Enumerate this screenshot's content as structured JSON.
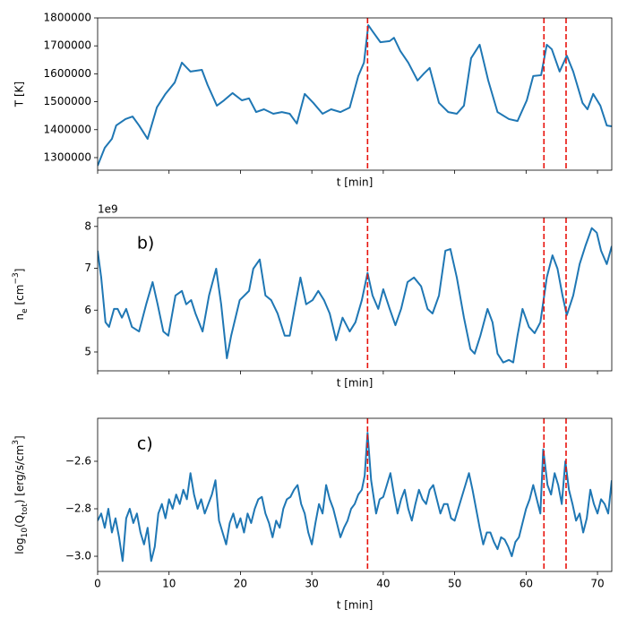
{
  "chart_data": [
    {
      "type": "line",
      "ylabel": "T [K]",
      "xlabel": "t [min]",
      "xlim": [
        0,
        72
      ],
      "xticks": [
        0,
        10,
        20,
        30,
        40,
        50,
        60,
        70
      ],
      "xtick_labels": false,
      "ylim": [
        1255000,
        1800000
      ],
      "yticks": [
        1300000,
        1400000,
        1500000,
        1600000,
        1700000,
        1800000
      ],
      "color": "#1f77b4",
      "vlines": [
        37.8,
        62.5,
        65.6
      ],
      "vline_color": "#e8120c",
      "x": [
        0,
        1.0,
        2.0,
        2.6,
        3.9,
        4.9,
        5.8,
        7.0,
        8.3,
        9.5,
        10.8,
        11.8,
        13.0,
        14.6,
        15.4,
        16.7,
        17.7,
        18.9,
        20.2,
        21.2,
        22.2,
        23.3,
        24.6,
        25.8,
        26.9,
        27.9,
        29.0,
        30.2,
        31.5,
        32.7,
        34.0,
        35.3,
        36.5,
        37.3,
        37.9,
        38.5,
        39.6,
        40.9,
        41.5,
        42.4,
        43.5,
        44.8,
        45.7,
        46.5,
        47.8,
        49.1,
        50.3,
        51.3,
        52.3,
        53.5,
        54.7,
        56.0,
        57.6,
        58.8,
        60.1,
        61.0,
        62.1,
        62.9,
        63.6,
        64.7,
        65.7,
        66.6,
        67.9,
        68.6,
        69.4,
        70.4,
        71.3,
        72.0
      ],
      "values": [
        1271000,
        1335000,
        1367000,
        1415000,
        1438000,
        1447000,
        1415000,
        1367000,
        1480000,
        1528000,
        1569000,
        1640000,
        1608000,
        1614000,
        1560000,
        1486000,
        1505000,
        1531000,
        1505000,
        1512000,
        1463000,
        1473000,
        1457000,
        1463000,
        1457000,
        1422000,
        1528000,
        1496000,
        1457000,
        1473000,
        1463000,
        1479000,
        1592000,
        1640000,
        1774000,
        1752000,
        1713000,
        1717000,
        1729000,
        1681000,
        1640000,
        1576000,
        1601000,
        1621000,
        1496000,
        1463000,
        1457000,
        1486000,
        1656000,
        1704000,
        1576000,
        1463000,
        1438000,
        1431000,
        1505000,
        1592000,
        1595000,
        1704000,
        1688000,
        1608000,
        1665000,
        1608000,
        1496000,
        1473000,
        1528000,
        1486000,
        1415000,
        1412000
      ]
    },
    {
      "type": "line",
      "ylabel": [
        {
          "text": "n"
        },
        {
          "text": "e",
          "shift": "sub"
        },
        {
          "text": " [cm"
        },
        {
          "text": "−3",
          "shift": "super"
        },
        {
          "text": "]"
        }
      ],
      "xlabel": "t [min]",
      "offset_text": "1e9",
      "annotation": "b)",
      "xlim": [
        0,
        72
      ],
      "xticks": [
        0,
        10,
        20,
        30,
        40,
        50,
        60,
        70
      ],
      "xtick_labels": false,
      "ylim": [
        4.55,
        8.21
      ],
      "yticks": [
        5,
        6,
        7,
        8
      ],
      "color": "#1f77b4",
      "vlines": [
        37.8,
        62.5,
        65.6
      ],
      "vline_color": "#e8120c",
      "x": [
        0,
        0.5,
        1.1,
        1.6,
        2.3,
        2.8,
        3.4,
        4.0,
        4.8,
        5.8,
        6.8,
        7.7,
        8.4,
        9.2,
        9.9,
        10.9,
        11.8,
        12.4,
        13.1,
        13.7,
        14.7,
        15.6,
        16.6,
        17.3,
        18.1,
        18.7,
        19.9,
        21.2,
        21.8,
        22.7,
        23.5,
        24.3,
        25.2,
        26.2,
        26.9,
        27.7,
        28.4,
        29.2,
        30.1,
        30.9,
        31.7,
        32.5,
        33.4,
        34.3,
        35.3,
        36.1,
        37.0,
        37.8,
        38.5,
        39.3,
        40.0,
        40.9,
        41.7,
        42.5,
        43.4,
        44.3,
        45.3,
        46.2,
        46.9,
        47.8,
        48.7,
        49.4,
        50.3,
        51.3,
        52.2,
        52.8,
        53.6,
        54.6,
        55.3,
        56.0,
        56.8,
        57.6,
        58.2,
        58.8,
        59.5,
        60.4,
        61.2,
        62.0,
        62.9,
        63.7,
        64.4,
        65.1,
        65.7,
        66.6,
        67.5,
        68.3,
        69.2,
        69.9,
        70.5,
        71.3,
        72.0
      ],
      "values": [
        7.42,
        6.78,
        5.71,
        5.6,
        6.03,
        6.03,
        5.82,
        6.03,
        5.6,
        5.49,
        6.14,
        6.67,
        6.14,
        5.49,
        5.39,
        6.35,
        6.46,
        6.14,
        6.24,
        5.92,
        5.49,
        6.35,
        6.99,
        6.14,
        4.85,
        5.39,
        6.24,
        6.46,
        6.99,
        7.21,
        6.35,
        6.24,
        5.92,
        5.39,
        5.39,
        6.14,
        6.78,
        6.14,
        6.24,
        6.46,
        6.24,
        5.92,
        5.28,
        5.82,
        5.49,
        5.71,
        6.24,
        6.89,
        6.35,
        6.03,
        6.5,
        6.03,
        5.64,
        6.03,
        6.67,
        6.78,
        6.57,
        6.03,
        5.92,
        6.35,
        7.42,
        7.46,
        6.78,
        5.82,
        5.07,
        4.96,
        5.39,
        6.03,
        5.71,
        4.96,
        4.75,
        4.81,
        4.75,
        5.39,
        6.03,
        5.6,
        5.45,
        5.71,
        6.78,
        7.31,
        6.99,
        6.35,
        5.88,
        6.35,
        7.1,
        7.53,
        7.96,
        7.85,
        7.42,
        7.1,
        7.53
      ]
    },
    {
      "type": "line",
      "ylabel": [
        {
          "text": "log"
        },
        {
          "text": "10",
          "shift": "sub"
        },
        {
          "text": "(Q"
        },
        {
          "text": "tot",
          "shift": "sub"
        },
        {
          "text": ") [erg/s/cm"
        },
        {
          "text": "3",
          "shift": "super"
        },
        {
          "text": "]"
        }
      ],
      "xlabel": "t [min]",
      "annotation": "c)",
      "xlim": [
        0,
        72
      ],
      "xticks": [
        0,
        10,
        20,
        30,
        40,
        50,
        60,
        70
      ],
      "xtick_labels": true,
      "ylim": [
        -3.064,
        -2.419
      ],
      "yticks": [
        {
          "value": -3.0,
          "label": "−3.0"
        },
        {
          "value": -2.8,
          "label": "−2.8"
        },
        {
          "value": -2.6,
          "label": "−2.6"
        }
      ],
      "color": "#1f77b4",
      "vlines": [
        37.8,
        62.5,
        65.6
      ],
      "vline_color": "#e8120c",
      "x": [
        0,
        0.5,
        1,
        1.5,
        2,
        2.5,
        3,
        3.5,
        4,
        4.5,
        5,
        5.5,
        6,
        6.5,
        7,
        7.5,
        8,
        8.5,
        9,
        9.5,
        10,
        10.5,
        11,
        11.5,
        12,
        12.5,
        13,
        13.5,
        14,
        14.5,
        15,
        15.5,
        16,
        16.5,
        17,
        17.5,
        18,
        18.5,
        19,
        19.5,
        20,
        20.5,
        21,
        21.5,
        22,
        22.5,
        23,
        23.5,
        24,
        24.5,
        25,
        25.5,
        26,
        26.5,
        27,
        27.5,
        28,
        28.5,
        29,
        29.5,
        30,
        30.5,
        31,
        31.5,
        32,
        32.5,
        33,
        33.5,
        34,
        34.5,
        35,
        35.5,
        36,
        36.5,
        37,
        37.4,
        37.8,
        38.3,
        39,
        39.5,
        40,
        40.5,
        41,
        41.5,
        42,
        42.5,
        43,
        43.5,
        44,
        44.5,
        45,
        45.5,
        46,
        46.5,
        47,
        47.5,
        48,
        48.5,
        49,
        49.5,
        50,
        50.5,
        51,
        51.5,
        52,
        52.5,
        53,
        53.5,
        54,
        54.5,
        55,
        55.5,
        56,
        56.5,
        57,
        57.5,
        58,
        58.5,
        59,
        59.5,
        60,
        60.5,
        61,
        61.5,
        62,
        62.4,
        63,
        63.5,
        64,
        64.5,
        65,
        65.5,
        66,
        66.5,
        67,
        67.5,
        68,
        68.5,
        69,
        69.5,
        70,
        70.5,
        71,
        71.5,
        72
      ],
      "values": [
        -2.85,
        -2.82,
        -2.88,
        -2.8,
        -2.9,
        -2.84,
        -2.92,
        -3.02,
        -2.84,
        -2.8,
        -2.86,
        -2.82,
        -2.9,
        -2.95,
        -2.88,
        -3.02,
        -2.96,
        -2.82,
        -2.78,
        -2.84,
        -2.76,
        -2.8,
        -2.74,
        -2.78,
        -2.72,
        -2.76,
        -2.65,
        -2.74,
        -2.8,
        -2.76,
        -2.82,
        -2.78,
        -2.74,
        -2.68,
        -2.85,
        -2.9,
        -2.95,
        -2.86,
        -2.82,
        -2.88,
        -2.84,
        -2.9,
        -2.82,
        -2.86,
        -2.8,
        -2.76,
        -2.75,
        -2.82,
        -2.86,
        -2.92,
        -2.85,
        -2.88,
        -2.8,
        -2.76,
        -2.75,
        -2.72,
        -2.7,
        -2.78,
        -2.82,
        -2.9,
        -2.95,
        -2.86,
        -2.78,
        -2.82,
        -2.7,
        -2.76,
        -2.8,
        -2.86,
        -2.92,
        -2.88,
        -2.85,
        -2.8,
        -2.78,
        -2.74,
        -2.72,
        -2.66,
        -2.48,
        -2.68,
        -2.82,
        -2.76,
        -2.75,
        -2.7,
        -2.65,
        -2.74,
        -2.82,
        -2.76,
        -2.72,
        -2.8,
        -2.85,
        -2.78,
        -2.72,
        -2.76,
        -2.78,
        -2.72,
        -2.7,
        -2.76,
        -2.82,
        -2.78,
        -2.78,
        -2.84,
        -2.85,
        -2.8,
        -2.75,
        -2.7,
        -2.65,
        -2.72,
        -2.8,
        -2.88,
        -2.95,
        -2.9,
        -2.9,
        -2.94,
        -2.97,
        -2.92,
        -2.93,
        -2.96,
        -3.0,
        -2.94,
        -2.92,
        -2.86,
        -2.8,
        -2.76,
        -2.7,
        -2.76,
        -2.82,
        -2.55,
        -2.7,
        -2.74,
        -2.65,
        -2.7,
        -2.78,
        -2.6,
        -2.72,
        -2.78,
        -2.85,
        -2.82,
        -2.9,
        -2.84,
        -2.72,
        -2.78,
        -2.82,
        -2.76,
        -2.78,
        -2.82,
        -2.68
      ]
    }
  ]
}
